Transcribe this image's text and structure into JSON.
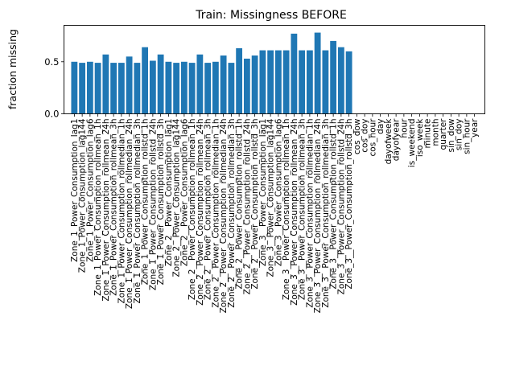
{
  "chart_data": {
    "type": "bar",
    "title": "Train: Missingness BEFORE",
    "xlabel": "",
    "ylabel": "fraction missing",
    "ylim": [
      0.0,
      0.85
    ],
    "yticks": [
      "0.0",
      "0.5"
    ],
    "color": "#1f77b4",
    "grid": false,
    "categories": [
      "Zone_1_Power_Consumption_lag1",
      "Zone_1_Power_Consumption_lag144",
      "Zone_1_Power_Consumption_lag6",
      "Zone_1_Power_Consumption_rollmean_1h",
      "Zone_1_Power_Consumption_rollmean_24h",
      "Zone_1_Power_Consumption_rollmean_3h",
      "Zone_1_Power_Consumption_rollmedian_1h",
      "Zone_1_Power_Consumption_rollmedian_24h",
      "Zone_1_Power_Consumption_rollmedian_3h",
      "Zone_1_Power_Consumption_rollstd_1h",
      "Zone_1_Power_Consumption_rollstd_24h",
      "Zone_1_Power_Consumption_rollstd_3h",
      "Zone_2__Power_Consumption_lag1",
      "Zone_2__Power_Consumption_lag144",
      "Zone_2__Power_Consumption_lag6",
      "Zone_2__Power_Consumption_rollmean_1h",
      "Zone_2__Power_Consumption_rollmean_24h",
      "Zone_2__Power_Consumption_rollmean_3h",
      "Zone_2__Power_Consumption_rollmedian_1h",
      "Zone_2__Power_Consumption_rollmedian_24h",
      "Zone_2__Power_Consumption_rollmedian_3h",
      "Zone_2__Power_Consumption_rollstd_1h",
      "Zone_2__Power_Consumption_rollstd_24h",
      "Zone_2__Power_Consumption_rollstd_3h",
      "Zone_3__Power_Consumption_lag1",
      "Zone_3__Power_Consumption_lag144",
      "Zone_3__Power_Consumption_lag6",
      "Zone_3__Power_Consumption_rollmean_1h",
      "Zone_3__Power_Consumption_rollmean_24h",
      "Zone_3__Power_Consumption_rollmean_3h",
      "Zone_3__Power_Consumption_rollmedian_1h",
      "Zone_3__Power_Consumption_rollmedian_24h",
      "Zone_3__Power_Consumption_rollmedian_3h",
      "Zone_3__Power_Consumption_rollstd_1h",
      "Zone_3__Power_Consumption_rollstd_24h",
      "Zone_3__Power_Consumption_rollstd_3h",
      "cos_dow",
      "cos_doy",
      "cos_hour",
      "day",
      "dayofweek",
      "dayofyear",
      "hour",
      "is_weekend",
      "iso_week",
      "minute",
      "month",
      "quarter",
      "sin_dow",
      "sin_doy",
      "sin_hour",
      "year"
    ],
    "values": [
      0.5,
      0.49,
      0.5,
      0.49,
      0.57,
      0.49,
      0.49,
      0.55,
      0.49,
      0.64,
      0.51,
      0.57,
      0.5,
      0.49,
      0.5,
      0.49,
      0.57,
      0.49,
      0.5,
      0.56,
      0.49,
      0.63,
      0.53,
      0.56,
      0.61,
      0.61,
      0.61,
      0.61,
      0.77,
      0.61,
      0.61,
      0.78,
      0.61,
      0.7,
      0.64,
      0.6,
      0,
      0,
      0,
      0,
      0,
      0,
      0,
      0,
      0,
      0,
      0,
      0,
      0,
      0,
      0,
      0
    ]
  }
}
